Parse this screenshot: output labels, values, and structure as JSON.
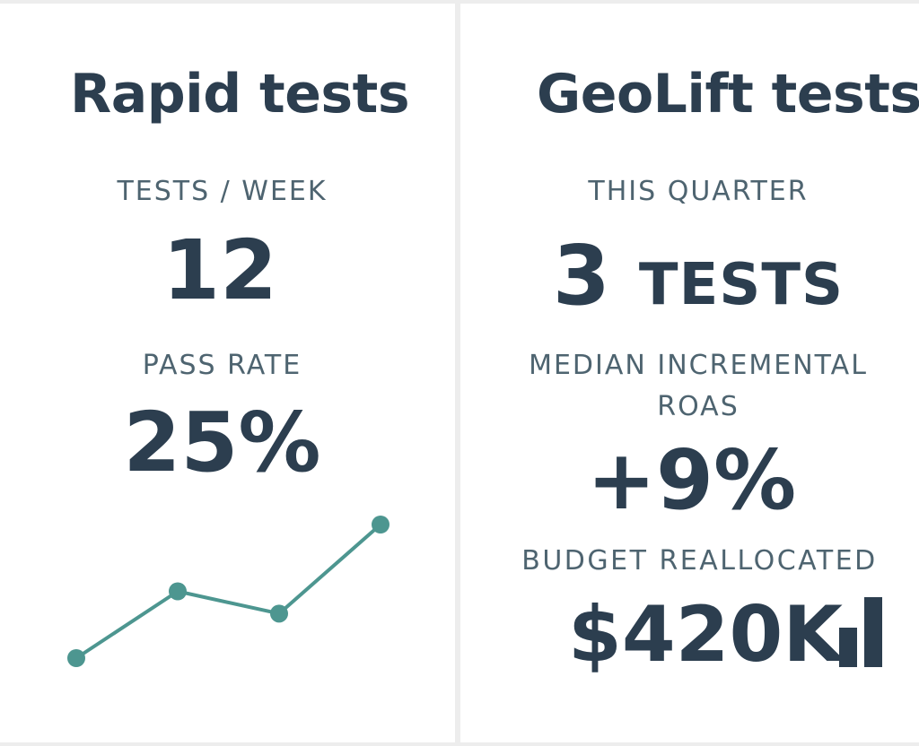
{
  "rapid": {
    "title": "Rapid tests",
    "tests_per_week_label": "TESTS / WEEK",
    "tests_per_week_value": "12",
    "pass_rate_label": "PASS RATE",
    "pass_rate_value": "25%",
    "sparkline": {
      "type": "line",
      "values": [
        1,
        4,
        3,
        7
      ],
      "color": "#4d9690"
    }
  },
  "geolift": {
    "title": "GeoLift tests",
    "quarter_label": "THIS QUARTER",
    "quarter_number": "3",
    "quarter_unit": "TESTS",
    "roas_label_line1": "MEDIAN INCREMENTAL",
    "roas_label_line2": "ROAS",
    "roas_value": "+9%",
    "budget_label": "BUDGET REALLOCATED",
    "budget_value": "$420K",
    "budget_icon": "bar-chart-icon",
    "icon_color": "#2c3e4f"
  }
}
